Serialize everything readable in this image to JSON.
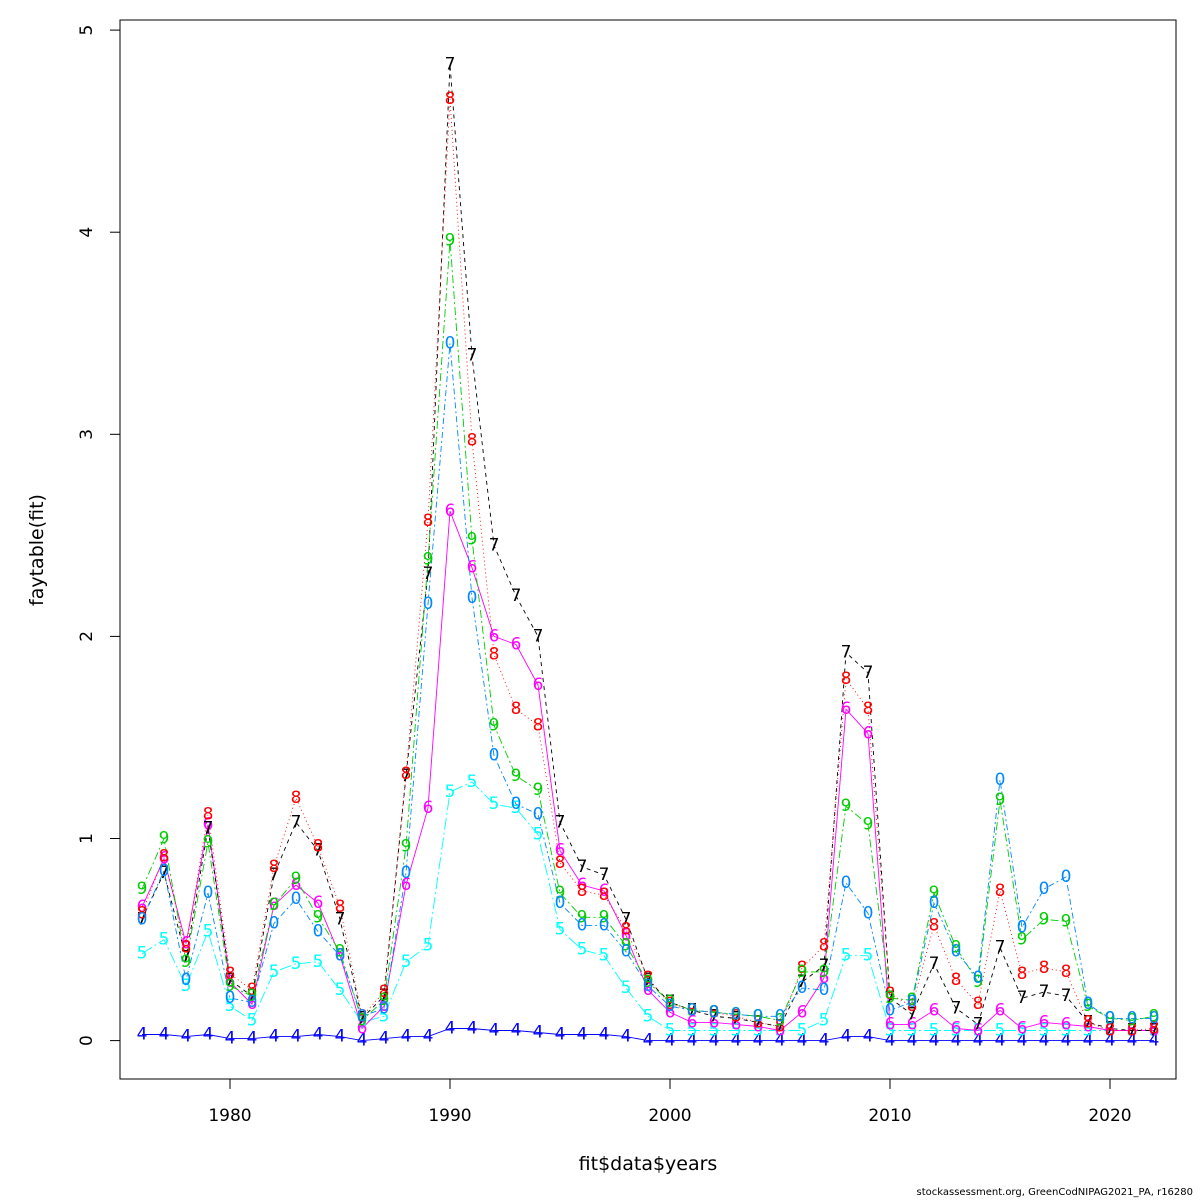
{
  "footer": "stockassessment.org, GreenCodNIPAG2021_PA, r16280",
  "chart_data": {
    "type": "line",
    "xlabel": "fit$data$years",
    "ylabel": "faytable(fit)",
    "xlim": [
      1975,
      2023
    ],
    "ylim": [
      -0.19,
      5.05
    ],
    "xticks": [
      1980,
      1990,
      2000,
      2010,
      2020
    ],
    "yticks": [
      0,
      1,
      2,
      3,
      4,
      5
    ],
    "grid": false,
    "x": [
      1976,
      1977,
      1978,
      1979,
      1980,
      1981,
      1982,
      1983,
      1984,
      1985,
      1986,
      1987,
      1988,
      1989,
      1990,
      1991,
      1992,
      1993,
      1994,
      1995,
      1996,
      1997,
      1998,
      1999,
      2000,
      2001,
      2002,
      2003,
      2004,
      2005,
      2006,
      2007,
      2008,
      2009,
      2010,
      2011,
      2012,
      2013,
      2014,
      2015,
      2016,
      2017,
      2018,
      2019,
      2020,
      2021,
      2022
    ],
    "series": [
      {
        "name": "4",
        "label": "4",
        "color": "#0000FF",
        "dash": "none",
        "values": [
          0.03,
          0.03,
          0.02,
          0.03,
          0.01,
          0.01,
          0.02,
          0.02,
          0.03,
          0.02,
          0.0,
          0.01,
          0.02,
          0.02,
          0.06,
          0.06,
          0.05,
          0.05,
          0.04,
          0.03,
          0.03,
          0.03,
          0.02,
          0.0,
          0.0,
          0.0,
          0.0,
          0.0,
          0.0,
          0.0,
          0.0,
          0.0,
          0.02,
          0.02,
          0.0,
          0.0,
          0.0,
          0.0,
          0.0,
          0.0,
          0.0,
          0.0,
          0.0,
          0.0,
          0.0,
          0.0,
          0.0
        ]
      },
      {
        "name": "5",
        "label": "5",
        "color": "#00FFFF",
        "dash": "12,3,2,3",
        "values": [
          0.43,
          0.5,
          0.27,
          0.54,
          0.17,
          0.1,
          0.34,
          0.38,
          0.39,
          0.25,
          0.09,
          0.12,
          0.39,
          0.47,
          1.23,
          1.28,
          1.17,
          1.15,
          1.02,
          0.55,
          0.45,
          0.42,
          0.26,
          0.12,
          0.05,
          0.05,
          0.05,
          0.05,
          0.05,
          0.05,
          0.05,
          0.1,
          0.42,
          0.42,
          0.05,
          0.05,
          0.05,
          0.05,
          0.05,
          0.05,
          0.05,
          0.05,
          0.05,
          0.05,
          0.05,
          0.05,
          0.05
        ]
      },
      {
        "name": "6",
        "label": "6",
        "color": "#FF00FF",
        "dash": "none",
        "values": [
          0.66,
          0.9,
          0.48,
          1.07,
          0.29,
          0.18,
          0.67,
          0.77,
          0.68,
          0.42,
          0.06,
          0.17,
          0.77,
          1.15,
          2.62,
          2.34,
          2.0,
          1.96,
          1.76,
          0.94,
          0.77,
          0.74,
          0.52,
          0.25,
          0.14,
          0.09,
          0.09,
          0.08,
          0.07,
          0.05,
          0.14,
          0.31,
          1.64,
          1.52,
          0.08,
          0.08,
          0.15,
          0.06,
          0.05,
          0.15,
          0.06,
          0.09,
          0.08,
          0.07,
          0.05,
          0.05,
          0.05
        ]
      },
      {
        "name": "7",
        "label": "7",
        "color": "#000000",
        "dash": "4,4",
        "values": [
          0.6,
          0.83,
          0.41,
          1.05,
          0.3,
          0.22,
          0.82,
          1.08,
          0.94,
          0.6,
          0.11,
          0.22,
          1.31,
          2.31,
          4.83,
          3.39,
          2.45,
          2.2,
          2.0,
          1.08,
          0.86,
          0.82,
          0.6,
          0.3,
          0.19,
          0.15,
          0.12,
          0.11,
          0.09,
          0.07,
          0.29,
          0.37,
          1.92,
          1.82,
          0.21,
          0.13,
          0.38,
          0.16,
          0.08,
          0.46,
          0.21,
          0.24,
          0.22,
          0.09,
          0.06,
          0.05,
          0.05
        ]
      },
      {
        "name": "8",
        "label": "8",
        "color": "#FF0000",
        "dash": "1,3",
        "values": [
          0.63,
          0.91,
          0.46,
          1.12,
          0.33,
          0.25,
          0.86,
          1.2,
          0.96,
          0.66,
          0.12,
          0.24,
          1.32,
          2.57,
          4.66,
          2.97,
          1.91,
          1.64,
          1.56,
          0.88,
          0.74,
          0.72,
          0.55,
          0.31,
          0.18,
          0.15,
          0.14,
          0.12,
          0.09,
          0.07,
          0.36,
          0.47,
          1.79,
          1.64,
          0.23,
          0.17,
          0.57,
          0.3,
          0.18,
          0.74,
          0.33,
          0.36,
          0.34,
          0.09,
          0.05,
          0.05,
          0.06
        ]
      },
      {
        "name": "9",
        "label": "9",
        "color": "#00CD00",
        "dash": "8,3,2,3",
        "values": [
          0.75,
          1.0,
          0.39,
          0.98,
          0.27,
          0.22,
          0.67,
          0.8,
          0.61,
          0.44,
          0.1,
          0.2,
          0.96,
          2.38,
          3.96,
          2.48,
          1.56,
          1.31,
          1.24,
          0.73,
          0.61,
          0.61,
          0.47,
          0.29,
          0.19,
          0.15,
          0.14,
          0.13,
          0.12,
          0.1,
          0.34,
          0.34,
          1.16,
          1.07,
          0.21,
          0.2,
          0.73,
          0.46,
          0.29,
          1.19,
          0.5,
          0.6,
          0.59,
          0.17,
          0.11,
          0.1,
          0.12
        ]
      },
      {
        "name": "0",
        "label": "0",
        "color": "#0088FF",
        "dash": "6,3,2,3",
        "values": [
          0.6,
          0.84,
          0.3,
          0.73,
          0.21,
          0.19,
          0.58,
          0.7,
          0.54,
          0.42,
          0.12,
          0.16,
          0.83,
          2.16,
          3.45,
          2.19,
          1.41,
          1.17,
          1.12,
          0.68,
          0.57,
          0.57,
          0.44,
          0.27,
          0.17,
          0.15,
          0.14,
          0.13,
          0.12,
          0.12,
          0.26,
          0.25,
          0.78,
          0.63,
          0.15,
          0.19,
          0.68,
          0.44,
          0.31,
          1.29,
          0.56,
          0.75,
          0.81,
          0.18,
          0.11,
          0.11,
          0.11
        ]
      }
    ]
  }
}
